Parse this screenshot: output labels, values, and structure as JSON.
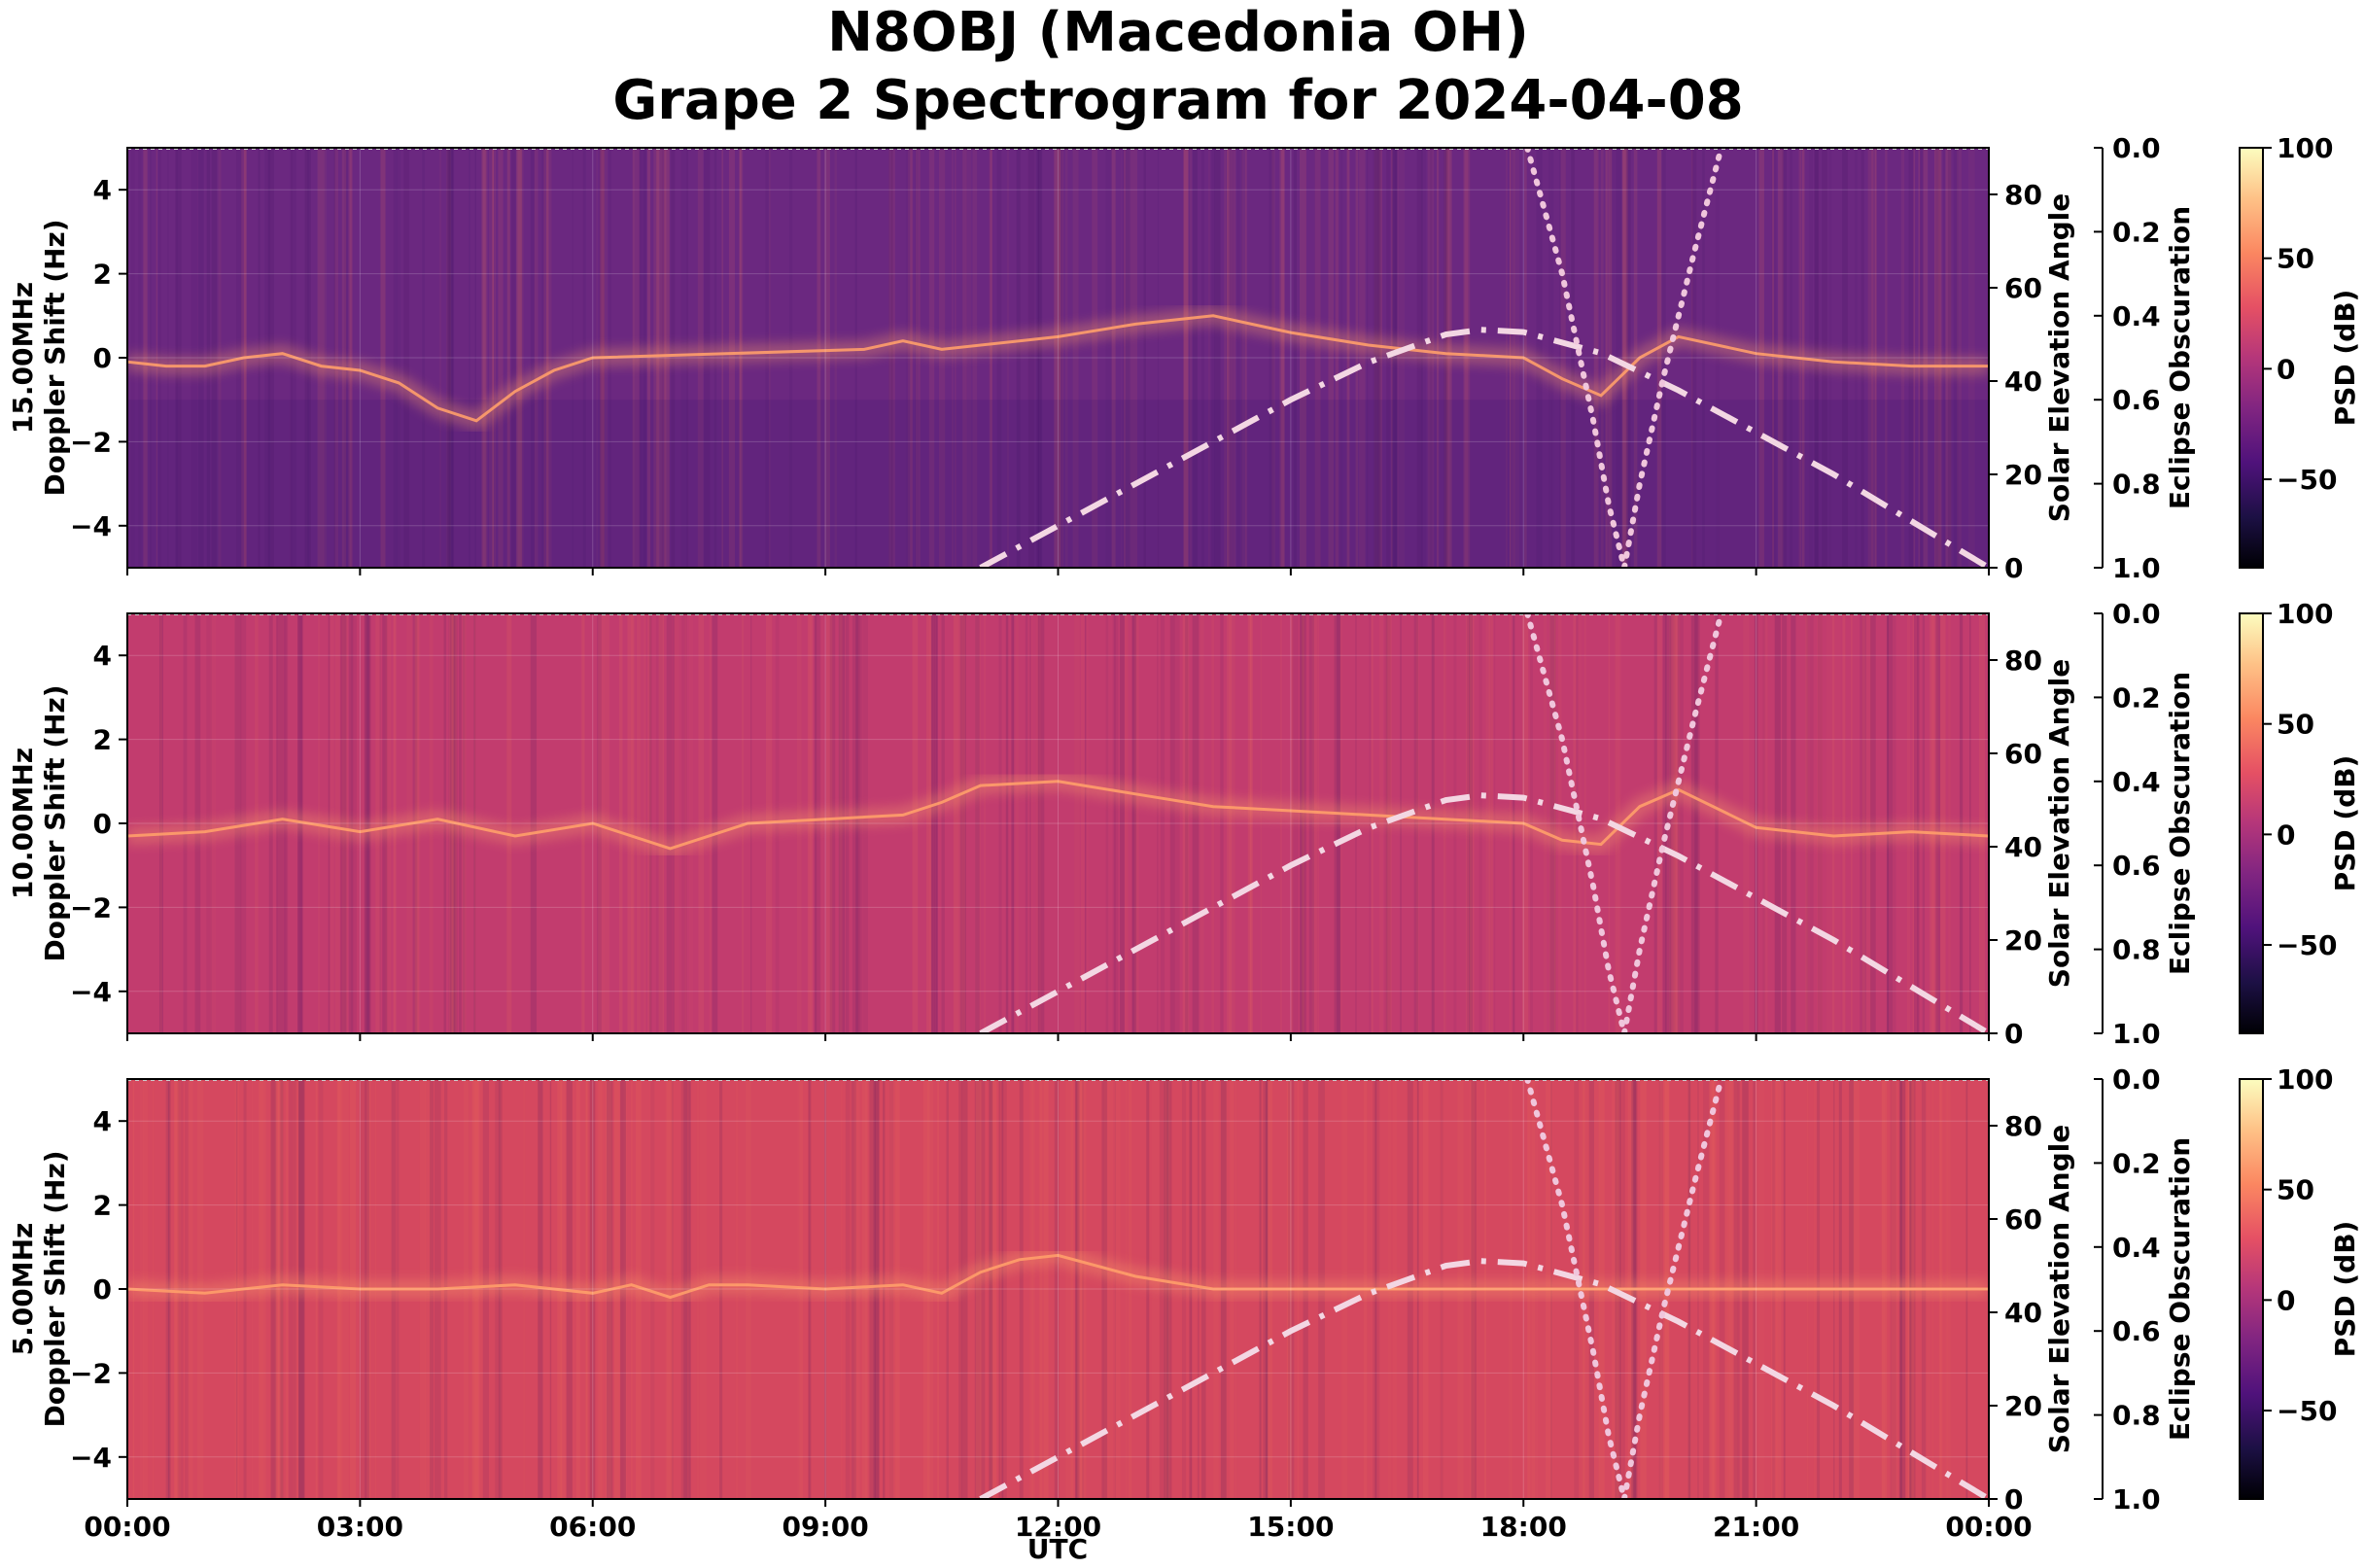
{
  "figure": {
    "title_line1": "N8OBJ (Macedonia OH)",
    "title_line2": "Grape 2 Spectrogram for 2024-04-08",
    "xlabel": "UTC"
  },
  "chart_data": {
    "type": "heatmap",
    "x_ticks": [
      "00:00",
      "03:00",
      "06:00",
      "09:00",
      "12:00",
      "15:00",
      "18:00",
      "21:00",
      "00:00"
    ],
    "x_range_hours": [
      0,
      24
    ],
    "doppler_ylim": [
      -5,
      5
    ],
    "doppler_ticks": [
      4,
      2,
      0,
      -2,
      -4
    ],
    "elevation_ylim": [
      0,
      90
    ],
    "elevation_ticks": [
      80,
      60,
      40,
      20,
      0
    ],
    "elevation_label": "Solar Elevation Angle",
    "obscuration_ylim": [
      0.0,
      1.0
    ],
    "obscuration_ticks": [
      "0.0",
      "0.2",
      "0.4",
      "0.6",
      "0.8",
      "1.0"
    ],
    "obscuration_label": "Eclipse Obscuration",
    "colorbar_range_db": [
      -90,
      100
    ],
    "colorbar_ticks": [
      100,
      50,
      0,
      -50
    ],
    "colorbar_tick_labels": [
      "100",
      "50",
      "0",
      "−50"
    ],
    "colorbar_label": "PSD (dB)",
    "colormap": "magma",
    "solar_elevation": {
      "hours": [
        11.0,
        12.0,
        13.0,
        14.0,
        15.0,
        16.0,
        17.0,
        17.45,
        18.0,
        19.0,
        20.0,
        21.0,
        22.0,
        23.0,
        24.0
      ],
      "degrees": [
        0,
        9,
        18,
        27,
        36,
        44,
        50,
        51,
        50.5,
        46,
        38,
        29,
        20,
        10,
        0
      ]
    },
    "eclipse_obscuration": {
      "hours": [
        18.05,
        18.5,
        18.9,
        19.1,
        19.3,
        19.5,
        19.8,
        20.2,
        20.55
      ],
      "values": [
        0.0,
        0.3,
        0.65,
        0.85,
        1.0,
        0.8,
        0.55,
        0.25,
        0.0
      ]
    },
    "panels": [
      {
        "frequency_label": "15.00MHz",
        "ylabel": "Doppler Shift (Hz)",
        "background": "#6b2880",
        "trace_hours": [
          0,
          0.5,
          1,
          1.5,
          2,
          2.5,
          3,
          3.5,
          4,
          4.5,
          5,
          5.5,
          6,
          9.5,
          10,
          10.5,
          11.5,
          12,
          13,
          14,
          15,
          16,
          17,
          18,
          18.5,
          19,
          19.5,
          20,
          21,
          22,
          23,
          24
        ],
        "trace_doppler": [
          -0.1,
          -0.2,
          -0.2,
          0.0,
          0.1,
          -0.2,
          -0.3,
          -0.6,
          -1.2,
          -1.5,
          -0.8,
          -0.3,
          0.0,
          0.2,
          0.4,
          0.2,
          0.4,
          0.5,
          0.8,
          1.0,
          0.6,
          0.3,
          0.1,
          0.0,
          -0.5,
          -0.9,
          0.0,
          0.5,
          0.1,
          -0.1,
          -0.2,
          -0.2
        ]
      },
      {
        "frequency_label": "10.00MHz",
        "ylabel": "Doppler Shift (Hz)",
        "background": "#c23c6e",
        "trace_hours": [
          0,
          1,
          2,
          3,
          4,
          5,
          6,
          7,
          8,
          9,
          10,
          10.5,
          11,
          12,
          13,
          14,
          15,
          16,
          17,
          18,
          18.5,
          19,
          19.5,
          20,
          21,
          22,
          23,
          24
        ],
        "trace_doppler": [
          -0.3,
          -0.2,
          0.1,
          -0.2,
          0.1,
          -0.3,
          0.0,
          -0.6,
          0.0,
          0.1,
          0.2,
          0.5,
          0.9,
          1.0,
          0.7,
          0.4,
          0.3,
          0.2,
          0.1,
          0.0,
          -0.4,
          -0.5,
          0.4,
          0.8,
          -0.1,
          -0.3,
          -0.2,
          -0.3
        ]
      },
      {
        "frequency_label": "5.00MHz",
        "ylabel": "Doppler Shift (Hz)",
        "background": "#d5485f",
        "trace_hours": [
          0,
          1,
          2,
          3,
          4,
          5,
          6,
          6.5,
          7,
          7.5,
          8,
          9,
          10,
          10.5,
          11,
          11.5,
          12,
          13,
          14,
          24
        ],
        "trace_doppler": [
          0.0,
          -0.1,
          0.1,
          0.0,
          0.0,
          0.1,
          -0.1,
          0.1,
          -0.2,
          0.1,
          0.1,
          0.0,
          0.1,
          -0.1,
          0.4,
          0.7,
          0.8,
          0.3,
          0.0,
          0.0
        ]
      }
    ]
  },
  "colors": {
    "elevation_curve": "#f3d7e3",
    "obscuration_curve": "#f0c6dc",
    "trace": "#ff9e6a"
  }
}
